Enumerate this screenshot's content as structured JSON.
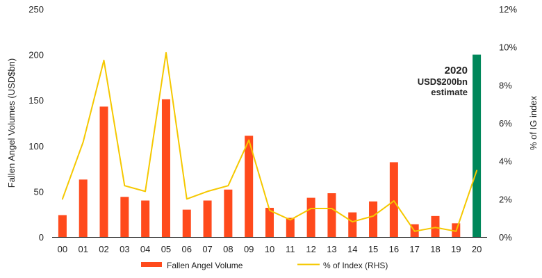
{
  "chart_data": {
    "type": "bar+line",
    "title": "",
    "categories": [
      "00",
      "01",
      "02",
      "03",
      "04",
      "05",
      "06",
      "07",
      "08",
      "09",
      "10",
      "11",
      "12",
      "13",
      "14",
      "15",
      "16",
      "17",
      "18",
      "19",
      "20"
    ],
    "series": [
      {
        "name": "Fallen Angel Volume",
        "type": "bar",
        "axis": "left",
        "color": "#ff4a1c",
        "highlight_color": "#00875a",
        "highlight_index": 20,
        "values": [
          24,
          63,
          143,
          44,
          40,
          151,
          30,
          40,
          52,
          111,
          32,
          21,
          43,
          48,
          27,
          39,
          82,
          14,
          23,
          15,
          200
        ]
      },
      {
        "name": "% of Index (RHS)",
        "type": "line",
        "axis": "right",
        "color": "#f5c800",
        "values": [
          2.0,
          5.0,
          9.3,
          2.7,
          2.4,
          9.7,
          2.0,
          2.4,
          2.7,
          5.1,
          1.4,
          0.9,
          1.5,
          1.5,
          0.8,
          1.1,
          1.9,
          0.3,
          0.5,
          0.3,
          3.5
        ]
      }
    ],
    "ylabel": "Fallen Angel Volumes (USD$bn)",
    "ylim": [
      0,
      250
    ],
    "yticks": [
      "0",
      "50",
      "100",
      "150",
      "200",
      "250"
    ],
    "y2label": "% of IG index",
    "y2lim": [
      0,
      12
    ],
    "y2ticks": [
      "0%",
      "2%",
      "4%",
      "6%",
      "8%",
      "10%",
      "12%"
    ],
    "grid": false,
    "legend_position": "bottom",
    "annotation": [
      "2020",
      "USD$200bn",
      "estimate"
    ]
  }
}
